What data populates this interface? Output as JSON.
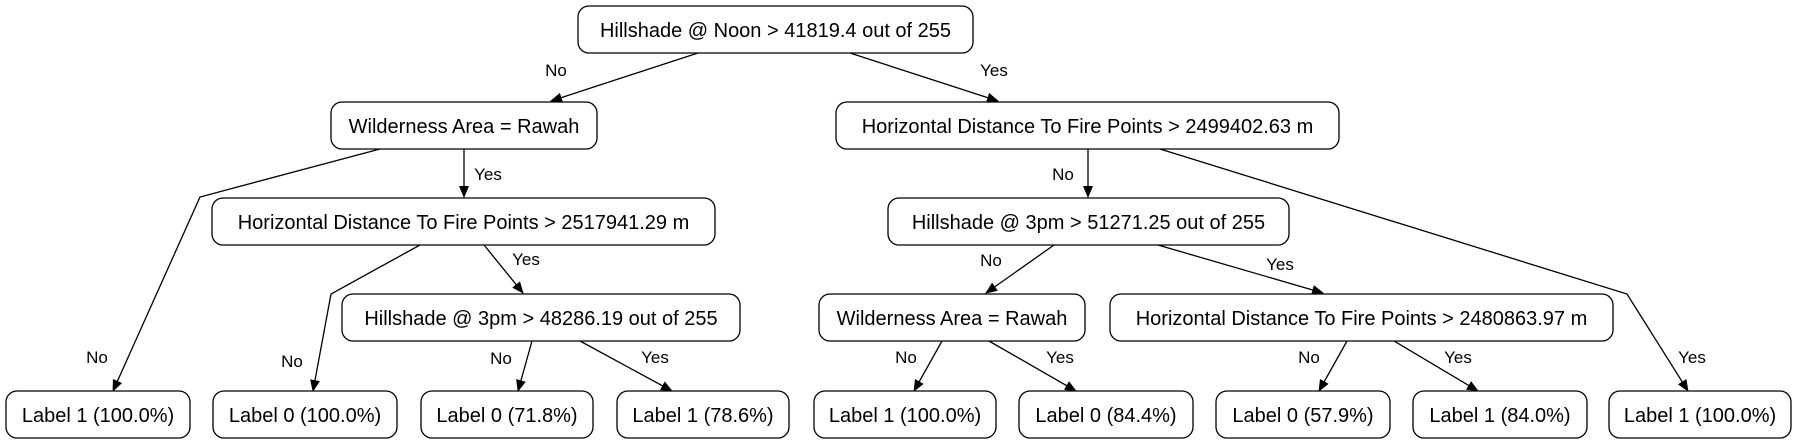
{
  "nodes": {
    "root": "Hillshade @ Noon > 41819.4 out of 255",
    "n_left": "Wilderness Area = Rawah",
    "n_right": "Horizontal Distance To Fire Points > 2499402.63 m",
    "n_l_yes": "Horizontal Distance To Fire Points > 2517941.29 m",
    "n_l_yes_yes": "Hillshade @ 3pm > 48286.19 out of 255",
    "n_r_no": "Hillshade @ 3pm > 51271.25 out of 255",
    "n_r_no_no": "Wilderness Area = Rawah",
    "n_r_no_yes": "Horizontal Distance To Fire Points > 2480863.97 m",
    "leaf1": "Label 1 (100.0%)",
    "leaf2": "Label 0 (100.0%)",
    "leaf3": "Label 0 (71.8%)",
    "leaf4": "Label 1 (78.6%)",
    "leaf5": "Label 1 (100.0%)",
    "leaf6": "Label 0 (84.4%)",
    "leaf7": "Label 0 (57.9%)",
    "leaf8": "Label 1 (84.0%)",
    "leaf9": "Label 1 (100.0%)"
  },
  "edges": {
    "root_no": "No",
    "root_yes": "Yes",
    "left_no": "No",
    "left_yes": "Yes",
    "lyes_no": "No",
    "lyes_yes": "Yes",
    "lyy_no": "No",
    "lyy_yes": "Yes",
    "right_no": "No",
    "right_yes": "Yes",
    "rno_no": "No",
    "rno_yes": "Yes",
    "rnn_no": "No",
    "rnn_yes": "Yes",
    "rny_no": "No",
    "rny_yes": "Yes"
  }
}
